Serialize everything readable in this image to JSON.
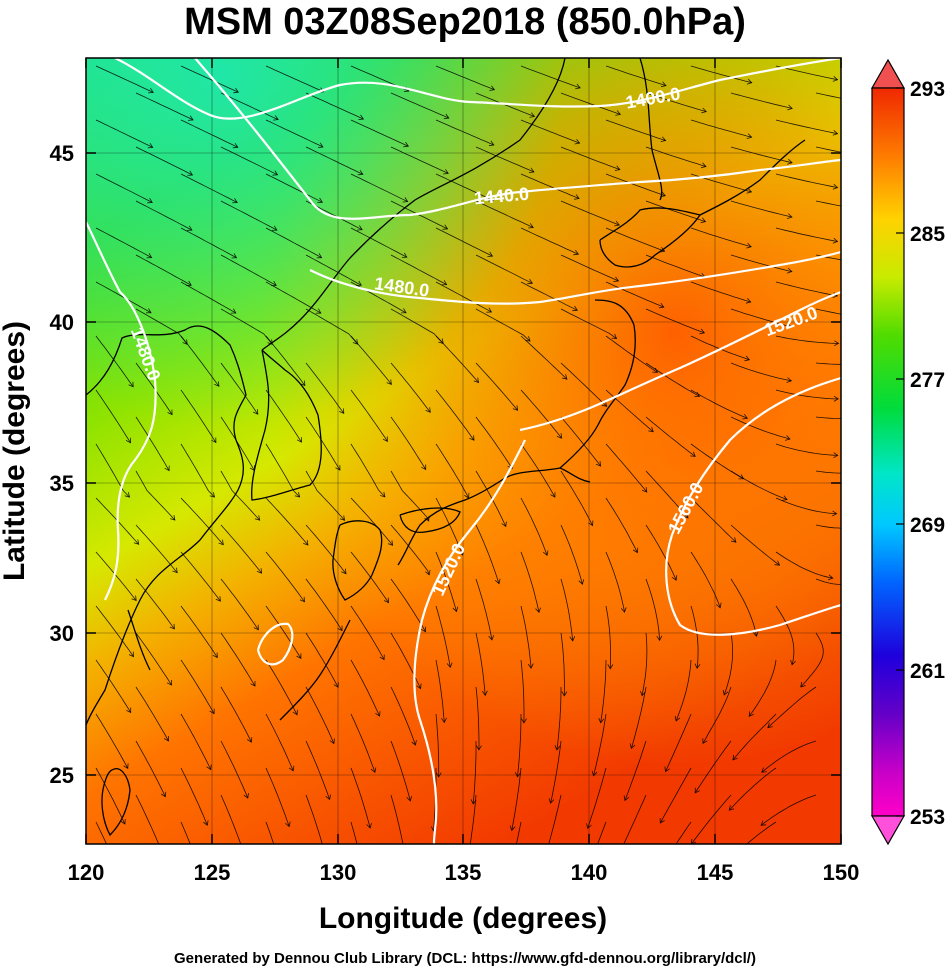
{
  "title": "MSM 03Z08Sep2018 (850.0hPa)",
  "xaxis": {
    "label": "Longitude (degrees)",
    "range": [
      120,
      150
    ],
    "ticks": [
      "120",
      "125",
      "130",
      "135",
      "140",
      "145",
      "150"
    ]
  },
  "yaxis": {
    "label": "Latitude  (degrees)",
    "range": [
      22.4,
      47.6
    ],
    "ticks": [
      "25",
      "30",
      "35",
      "40",
      "45"
    ]
  },
  "colorbar": {
    "ticks": [
      "253",
      "261",
      "269",
      "277",
      "285",
      "293"
    ],
    "range": [
      253,
      293
    ],
    "colors": [
      "#ff00c8",
      "#7d00c8",
      "#1e00dc",
      "#0064ff",
      "#00c8ff",
      "#00e6c8",
      "#00dc50",
      "#32dc00",
      "#b4eb00",
      "#ffe600",
      "#ffa000",
      "#ff5a00",
      "#f02800"
    ]
  },
  "contours": {
    "color": "#ffffff",
    "labels": [
      "1400.0",
      "1440.0",
      "1480.0",
      "1480.0",
      "1520.0",
      "1520.0",
      "1560.0"
    ]
  },
  "credit": "Generated by Dennou Club Library (DCL: https://www.gfd-dennou.org/library/dcl/)"
}
